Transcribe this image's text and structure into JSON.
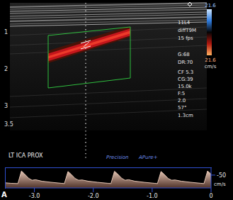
{
  "image": {
    "depth_labels": [
      "1",
      "2",
      "3",
      "3.5"
    ],
    "settings": [
      "11L4",
      "diffT9M",
      "15 fps",
      "G:68",
      "DR:70",
      "CF 5.3",
      "CG:39",
      "15.0k",
      "F:5",
      "2.0",
      "57°",
      "1.3cm"
    ],
    "color_scale": {
      "top_label": "21.6",
      "bottom_label": "21.6",
      "unit": "cm/s"
    },
    "site_label": "LT ICA PROX",
    "brand": [
      "Precision",
      "APure+"
    ],
    "panel_label": "A"
  },
  "chart_data": {
    "type": "area",
    "x": [
      -3.5,
      -3.4,
      -3.28,
      -3.22,
      -3.17,
      -3.1,
      -3.04,
      -2.98,
      -2.87,
      -2.72,
      -2.54,
      -2.49,
      -2.43,
      -2.38,
      -2.31,
      -2.25,
      -2.19,
      -2.08,
      -1.93,
      -1.75,
      -1.7,
      -1.64,
      -1.59,
      -1.52,
      -1.46,
      -1.4,
      -1.29,
      -1.14,
      -0.96,
      -0.91,
      -0.85,
      -0.8,
      -0.73,
      -0.67,
      -0.61,
      -0.5,
      -0.35,
      -0.17,
      -0.12,
      -0.06,
      -0.01,
      0
    ],
    "values": [
      -20,
      -18,
      -17,
      -66,
      -55,
      -38,
      -30,
      -32,
      -26,
      -22,
      -18,
      -17,
      -64,
      -54,
      -37,
      -30,
      -31,
      -26,
      -22,
      -18,
      -17,
      -65,
      -55,
      -38,
      -30,
      -32,
      -26,
      -22,
      -18,
      -17,
      -64,
      -54,
      -37,
      -30,
      -31,
      -26,
      -22,
      -18,
      -17,
      -66,
      -56,
      -54
    ],
    "color": "#e6c6b4",
    "xlim": [
      -3.5,
      0
    ],
    "xticks": [
      {
        "value": -3,
        "label": "-3.0"
      },
      {
        "value": -2,
        "label": "-2.0"
      },
      {
        "value": -1,
        "label": "-1.0"
      },
      0
    ],
    "ylim": [
      -80,
      0
    ],
    "yticks": [
      -50
    ],
    "y_label": "cm/s",
    "grid": false
  }
}
